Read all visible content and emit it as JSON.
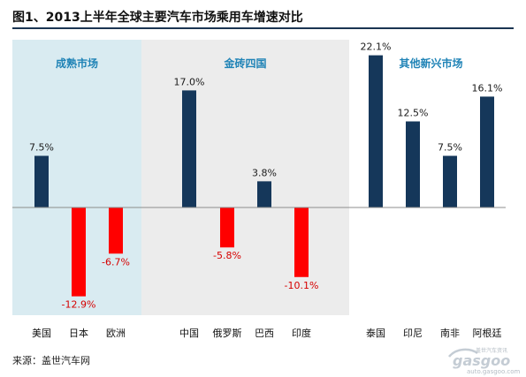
{
  "chart_data": {
    "type": "bar",
    "title": "图1、2013上半年全球主要汽车市场乘用车增速对比",
    "unit": "%",
    "groups": [
      {
        "name": "成熟市场",
        "items": [
          {
            "label": "美国",
            "value": 7.5,
            "value_label": "7.5%"
          },
          {
            "label": "日本",
            "value": -12.9,
            "value_label": "-12.9%"
          },
          {
            "label": "欧洲",
            "value": -6.7,
            "value_label": "-6.7%"
          }
        ]
      },
      {
        "name": "金砖四国",
        "items": [
          {
            "label": "中国",
            "value": 17.0,
            "value_label": "17.0%"
          },
          {
            "label": "俄罗斯",
            "value": -5.8,
            "value_label": "-5.8%"
          },
          {
            "label": "巴西",
            "value": 3.8,
            "value_label": "3.8%"
          },
          {
            "label": "印度",
            "value": -10.1,
            "value_label": "-10.1%"
          }
        ]
      },
      {
        "name": "其他新兴市场",
        "items": [
          {
            "label": "泰国",
            "value": 22.1,
            "value_label": "22.1%"
          },
          {
            "label": "印尼",
            "value": 12.5,
            "value_label": "12.5%"
          },
          {
            "label": "南非",
            "value": 7.5,
            "value_label": "7.5%"
          },
          {
            "label": "阿根廷",
            "value": 16.1,
            "value_label": "16.1%"
          }
        ]
      }
    ],
    "colors": {
      "positive": "#15375a",
      "negative": "#ff0000",
      "group_label": "#1f83b6",
      "group_bg": [
        "#d9ebf1",
        "#ececec",
        "#ffffff"
      ]
    },
    "grid": false,
    "legend": "none"
  },
  "source": "来源：盖世汽车网",
  "watermark": {
    "brand": "gasgoo",
    "tagline": "盖世汽车资讯",
    "url": "auto.gasgoo.com"
  }
}
